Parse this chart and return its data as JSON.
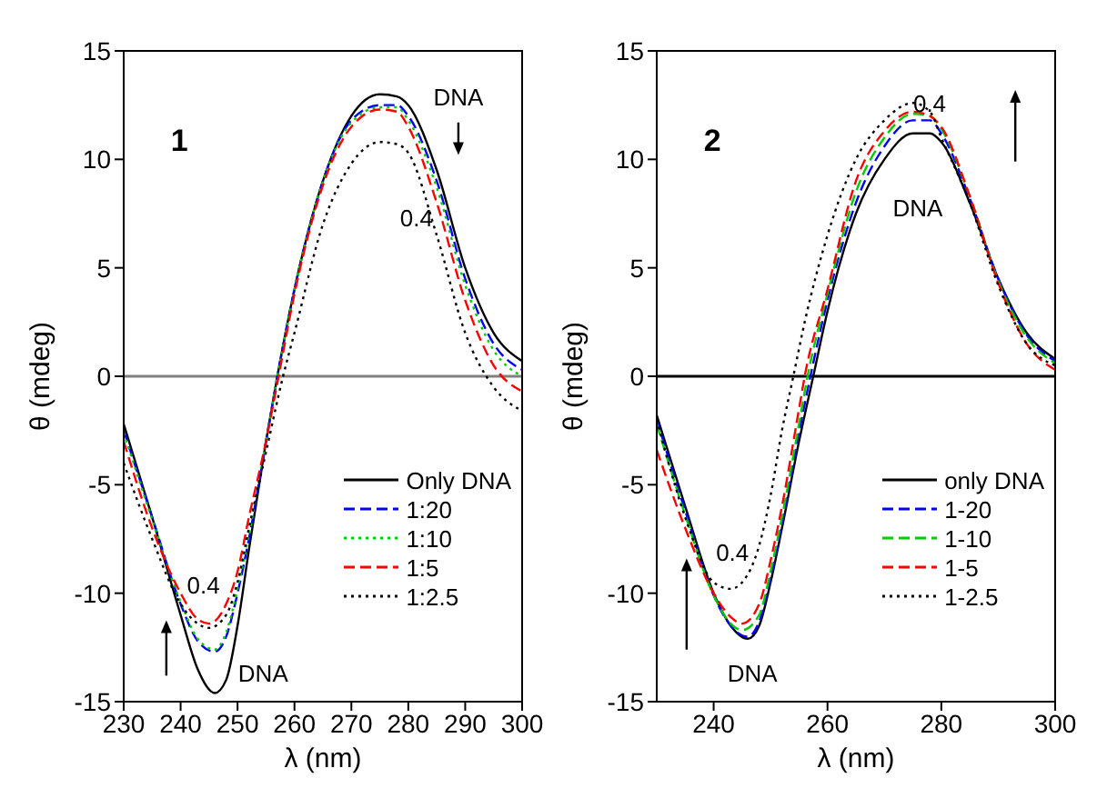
{
  "chart_data": [
    {
      "type": "line",
      "xlabel": "λ (nm)",
      "ylabel": "θ (mdeg)",
      "xlim": [
        230,
        300
      ],
      "ylim": [
        -15,
        15
      ],
      "xticks": [
        230,
        240,
        250,
        260,
        270,
        280,
        290,
        300
      ],
      "yticks": [
        -15,
        -10,
        -5,
        0,
        5,
        10,
        15
      ],
      "grid": false,
      "legend": "bottom right",
      "marker": "none",
      "ref_lines": [
        {
          "axis": "y",
          "value": 0,
          "color": "#808080",
          "line_style": "solid"
        }
      ],
      "annotations": [
        "1",
        "DNA",
        "0.4",
        "0.4",
        "DNA"
      ],
      "series": [
        {
          "name": "Only DNA",
          "color": "#000000",
          "line_style": "solid",
          "x": [
            230,
            235,
            240,
            243,
            246,
            248,
            250,
            252,
            255,
            257,
            260,
            265,
            270,
            275,
            278,
            280,
            285,
            290,
            295,
            300
          ],
          "values": [
            -2.2,
            -6.5,
            -11,
            -13.5,
            -14.6,
            -14,
            -11.5,
            -8,
            -3,
            0,
            4,
            9,
            12,
            13,
            12.9,
            12.5,
            9.5,
            5,
            2,
            0.7
          ]
        },
        {
          "name": "1:20",
          "color": "#0000ff",
          "line_style": "dashed",
          "x": [
            230,
            235,
            240,
            243,
            246,
            248,
            250,
            252,
            255,
            257,
            260,
            265,
            270,
            275,
            278,
            280,
            285,
            290,
            295,
            300
          ],
          "values": [
            -2.5,
            -6.5,
            -10.5,
            -12.2,
            -12.7,
            -12,
            -10,
            -7.5,
            -3,
            0,
            4,
            9,
            11.8,
            12.5,
            12.5,
            12,
            9,
            4.5,
            1.5,
            0.3
          ]
        },
        {
          "name": "1:10",
          "color": "#00cc00",
          "line_style": "dotted",
          "x": [
            230,
            235,
            240,
            243,
            246,
            248,
            250,
            252,
            255,
            257,
            260,
            265,
            270,
            275,
            278,
            280,
            285,
            290,
            295,
            300
          ],
          "values": [
            -2.6,
            -6.6,
            -10.4,
            -12.1,
            -12.6,
            -11.8,
            -9.8,
            -7.3,
            -3,
            0,
            4,
            9,
            11.7,
            12.4,
            12.4,
            11.8,
            8.7,
            4.2,
            1.2,
            0
          ]
        },
        {
          "name": "1:5",
          "color": "#ff0000",
          "line_style": "dashed",
          "x": [
            230,
            235,
            240,
            243,
            245,
            248,
            250,
            252,
            255,
            257,
            260,
            265,
            270,
            275,
            278,
            280,
            285,
            290,
            295,
            300
          ],
          "values": [
            -3,
            -7,
            -10,
            -11.2,
            -11.4,
            -10.5,
            -9,
            -6.5,
            -3,
            -0.3,
            3.8,
            8.8,
            11.5,
            12.3,
            12.2,
            11.5,
            8,
            3.5,
            0.5,
            -0.7
          ]
        },
        {
          "name": "1:2.5",
          "color": "#000000",
          "line_style": "dotted",
          "x": [
            230,
            235,
            240,
            243,
            245,
            248,
            250,
            252,
            255,
            258,
            260,
            265,
            270,
            275,
            278,
            280,
            285,
            290,
            295,
            300
          ],
          "values": [
            -4,
            -7.5,
            -10.5,
            -11.4,
            -11.6,
            -11,
            -9.5,
            -7,
            -3.5,
            0,
            2,
            7,
            9.8,
            10.8,
            10.7,
            10.3,
            6.5,
            2,
            -0.5,
            -1.6
          ]
        }
      ]
    },
    {
      "type": "line",
      "xlabel": "λ (nm)",
      "ylabel": "θ (mdeg)",
      "xlim": [
        230,
        300
      ],
      "ylim": [
        -15,
        15
      ],
      "xticks": [
        240,
        260,
        280,
        300
      ],
      "yticks": [
        -15,
        -10,
        -5,
        0,
        5,
        10,
        15
      ],
      "grid": false,
      "legend": "bottom right",
      "marker": "none",
      "ref_lines": [
        {
          "axis": "y",
          "value": 0,
          "color": "#000000",
          "line_style": "solid"
        }
      ],
      "annotations": [
        "2",
        "0.4",
        "DNA",
        "0.4",
        "DNA"
      ],
      "series": [
        {
          "name": "only DNA",
          "color": "#000000",
          "line_style": "solid",
          "x": [
            230,
            235,
            240,
            243,
            246,
            248,
            250,
            252,
            255,
            257.5,
            260,
            265,
            270,
            275,
            278,
            280,
            285,
            290,
            295,
            300
          ],
          "values": [
            -1.8,
            -6,
            -10,
            -11.5,
            -12.1,
            -11.5,
            -9.5,
            -7,
            -3,
            0,
            3,
            7.5,
            10,
            11.2,
            11.2,
            10.8,
            8,
            4.5,
            2,
            0.8
          ]
        },
        {
          "name": "1-20",
          "color": "#0000ff",
          "line_style": "dashed",
          "x": [
            230,
            235,
            240,
            243,
            246,
            248,
            250,
            252,
            255,
            257,
            260,
            265,
            270,
            275,
            278,
            280,
            285,
            290,
            295,
            300
          ],
          "values": [
            -2,
            -6.2,
            -10.1,
            -11.5,
            -12,
            -11.3,
            -9.3,
            -6.8,
            -2.6,
            0,
            3.5,
            8,
            10.6,
            11.8,
            11.8,
            11.2,
            8.2,
            4.5,
            1.9,
            0.7
          ]
        },
        {
          "name": "1-10",
          "color": "#00cc00",
          "line_style": "dashed",
          "x": [
            230,
            235,
            240,
            243,
            245,
            248,
            250,
            252,
            255,
            256.5,
            260,
            265,
            270,
            275,
            278,
            280,
            285,
            290,
            295,
            300
          ],
          "values": [
            -2.2,
            -6.4,
            -10.1,
            -11.4,
            -11.7,
            -11,
            -9,
            -6.5,
            -2.2,
            0,
            3.8,
            8.5,
            11,
            12.1,
            12,
            11.4,
            8.3,
            4.4,
            1.8,
            0.6
          ]
        },
        {
          "name": "1-5",
          "color": "#ff0000",
          "line_style": "dashed",
          "x": [
            230,
            235,
            240,
            243,
            245,
            248,
            250,
            252,
            255,
            256,
            260,
            265,
            270,
            275,
            278,
            280,
            285,
            290,
            295,
            300
          ],
          "values": [
            -3.4,
            -7,
            -10,
            -11.1,
            -11.4,
            -10.5,
            -8.5,
            -6,
            -1.5,
            0,
            4,
            9,
            11.3,
            12.2,
            12,
            11.5,
            8.3,
            4.3,
            1.5,
            0.3
          ]
        },
        {
          "name": "1-2.5",
          "color": "#000000",
          "line_style": "dotted",
          "x": [
            230,
            235,
            240,
            243,
            245,
            248,
            250,
            252,
            254,
            256,
            260,
            265,
            270,
            275,
            278,
            280,
            285,
            290,
            295,
            300
          ],
          "values": [
            -2,
            -6.5,
            -9.5,
            -9.8,
            -9.5,
            -7.8,
            -5.5,
            -2.5,
            0,
            2.5,
            6.5,
            10,
            11.8,
            12.6,
            12.2,
            11,
            8,
            4.2,
            1.5,
            0.5
          ]
        }
      ]
    }
  ]
}
